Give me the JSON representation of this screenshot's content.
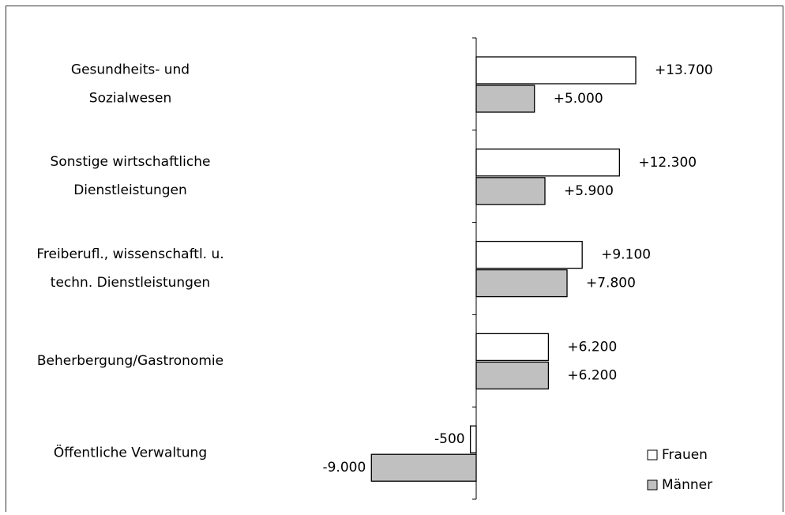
{
  "chart_data": {
    "type": "hbar",
    "categories": [
      [
        "Gesundheits- und",
        "Sozialwesen"
      ],
      [
        "Sonstige wirtschaftliche",
        "Dienstleistungen"
      ],
      [
        "Freiberufl., wissenschaftl. u.",
        "techn. Dienstleistungen"
      ],
      [
        "Beherbergung/Gastronomie"
      ],
      [
        "Öffentliche Verwaltung"
      ]
    ],
    "series": [
      {
        "name": "Frauen",
        "color": "#ffffff",
        "values": [
          13700,
          12300,
          9100,
          6200,
          -500
        ],
        "value_labels": [
          "+13.700",
          "+12.300",
          "+9.100",
          "+6.200",
          "-500"
        ]
      },
      {
        "name": "Männer",
        "color": "#c0c0c0",
        "values": [
          5000,
          5900,
          7800,
          6200,
          -9000
        ],
        "value_labels": [
          "+5.000",
          "+5.900",
          "+7.800",
          "+6.200",
          "-9.000"
        ]
      }
    ],
    "legend": "bottom-right"
  }
}
